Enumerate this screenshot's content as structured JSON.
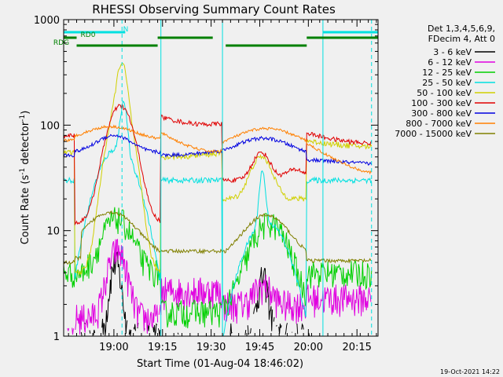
{
  "chart_data": {
    "type": "line",
    "title": "RHESSI Observing Summary Count Rates",
    "xlabel": "Start Time (01-Aug-04 18:46:02)",
    "ylabel_main": "Count Rate (s",
    "ylabel_sup1": "-1",
    "ylabel_mid": " detector",
    "ylabel_sup2": "-1",
    "ylabel_end": ")",
    "yscale": "log",
    "ylim": [
      1,
      1000
    ],
    "xlim_min": [
      -1.5,
      95.5
    ],
    "x_unit": "minutes after 18:46:02",
    "x_ticks": [
      {
        "min": 14,
        "label": "19:00"
      },
      {
        "min": 29,
        "label": "19:15"
      },
      {
        "min": 44,
        "label": "19:30"
      },
      {
        "min": 59,
        "label": "19:45"
      },
      {
        "min": 74,
        "label": "20:00"
      },
      {
        "min": 89,
        "label": "20:15"
      }
    ],
    "y_ticks": [
      {
        "v": 1,
        "label": "1"
      },
      {
        "v": 10,
        "label": "10"
      },
      {
        "v": 100,
        "label": "100"
      },
      {
        "v": 1000,
        "label": "1000"
      }
    ],
    "legend_header": [
      "Det 1,3,4,5,6,9,",
      "FDecim 4, Att 0"
    ],
    "legend_position": "right",
    "series": [
      {
        "name": "3 - 6 keV",
        "color": "#000000"
      },
      {
        "name": "6 - 12 keV",
        "color": "#e000e0"
      },
      {
        "name": "12 - 25 keV",
        "color": "#00d000"
      },
      {
        "name": "25 - 50 keV",
        "color": "#00e0e0"
      },
      {
        "name": "50 - 100 keV",
        "color": "#d0d000"
      },
      {
        "name": "100 - 300 keV",
        "color": "#e00000"
      },
      {
        "name": "300 - 800 keV",
        "color": "#0000e0"
      },
      {
        "name": "800 - 7000 keV",
        "color": "#ff8000"
      },
      {
        "name": "7000 - 15000 keV",
        "color": "#808000"
      }
    ],
    "flags": [
      {
        "label": "N",
        "color": "#00e0e0",
        "segments": [
          [
            -1.5,
            17.5
          ],
          [
            78.5,
            95.5
          ]
        ]
      },
      {
        "label": "RD0",
        "color": "#008000",
        "segments": [
          [
            -1.5,
            2.5
          ],
          [
            27.5,
            44.5
          ],
          [
            73.5,
            95.5
          ]
        ]
      },
      {
        "label": "RDG",
        "color": "#008000",
        "segments": [
          [
            2.5,
            27.5
          ],
          [
            48.5,
            73.5
          ]
        ]
      }
    ],
    "cyan_vlines": [
      -1.5,
      28.5,
      47.5,
      78.5
    ],
    "cyan_dashed_vlines": [
      16.5,
      93.5
    ],
    "timestamp": "19-Oct-2021 14:22"
  }
}
